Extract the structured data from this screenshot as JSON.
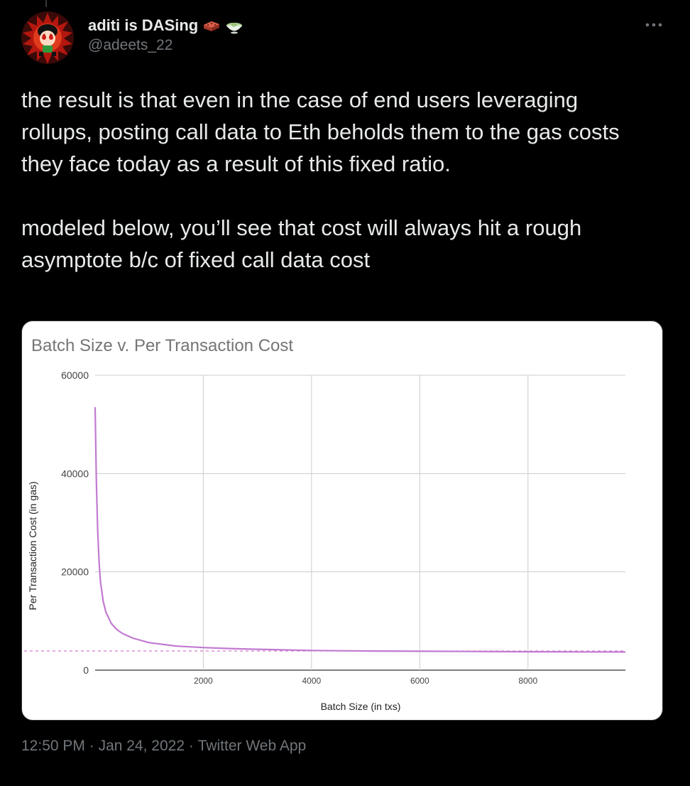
{
  "author": {
    "display_name": "aditi is DASing",
    "handle": "@adeets_22",
    "emoji": [
      "brick-emoji",
      "matcha-bowl-emoji"
    ]
  },
  "tweet": {
    "paragraphs": [
      "the result is that even in the case of end users leveraging rollups, posting call data to Eth beholds them to the gas costs they face today as a result of this fixed ratio.",
      "modeled below, you’ll see that cost will always hit a rough asymptote b/c of fixed call data cost"
    ]
  },
  "meta": {
    "time": "12:50 PM",
    "separator": " · ",
    "date": "Jan 24, 2022",
    "source": "Twitter Web App"
  },
  "colors": {
    "background": "#000000",
    "text": "#e7e9ea",
    "muted": "#71767b",
    "series": "#c27ad1",
    "asymptote": "#d57bd0"
  },
  "chart_data": {
    "type": "line",
    "title": "Batch Size v. Per Transaction Cost",
    "xlabel": "Batch Size (in txs)",
    "ylabel": "Per Transaction Cost (in gas)",
    "xlim": [
      1,
      9800
    ],
    "ylim": [
      0,
      60000
    ],
    "x_ticks": [
      2000,
      4000,
      6000,
      8000
    ],
    "y_ticks": [
      0,
      20000,
      40000,
      60000
    ],
    "grid": true,
    "legend": "none",
    "series": [
      {
        "x": [
          1,
          25,
          50,
          75,
          100,
          150,
          200,
          300,
          400,
          500,
          700,
          1000,
          1500,
          2000,
          2500,
          3000,
          4000,
          5000,
          6000,
          7000,
          8000,
          9000,
          9800
        ],
        "values": [
          53500,
          38000,
          28000,
          22000,
          18000,
          14000,
          11800,
          9500,
          8300,
          7500,
          6500,
          5600,
          4900,
          4600,
          4400,
          4250,
          4000,
          3900,
          3850,
          3800,
          3750,
          3720,
          3700
        ]
      }
    ],
    "asymptote": 3900
  }
}
